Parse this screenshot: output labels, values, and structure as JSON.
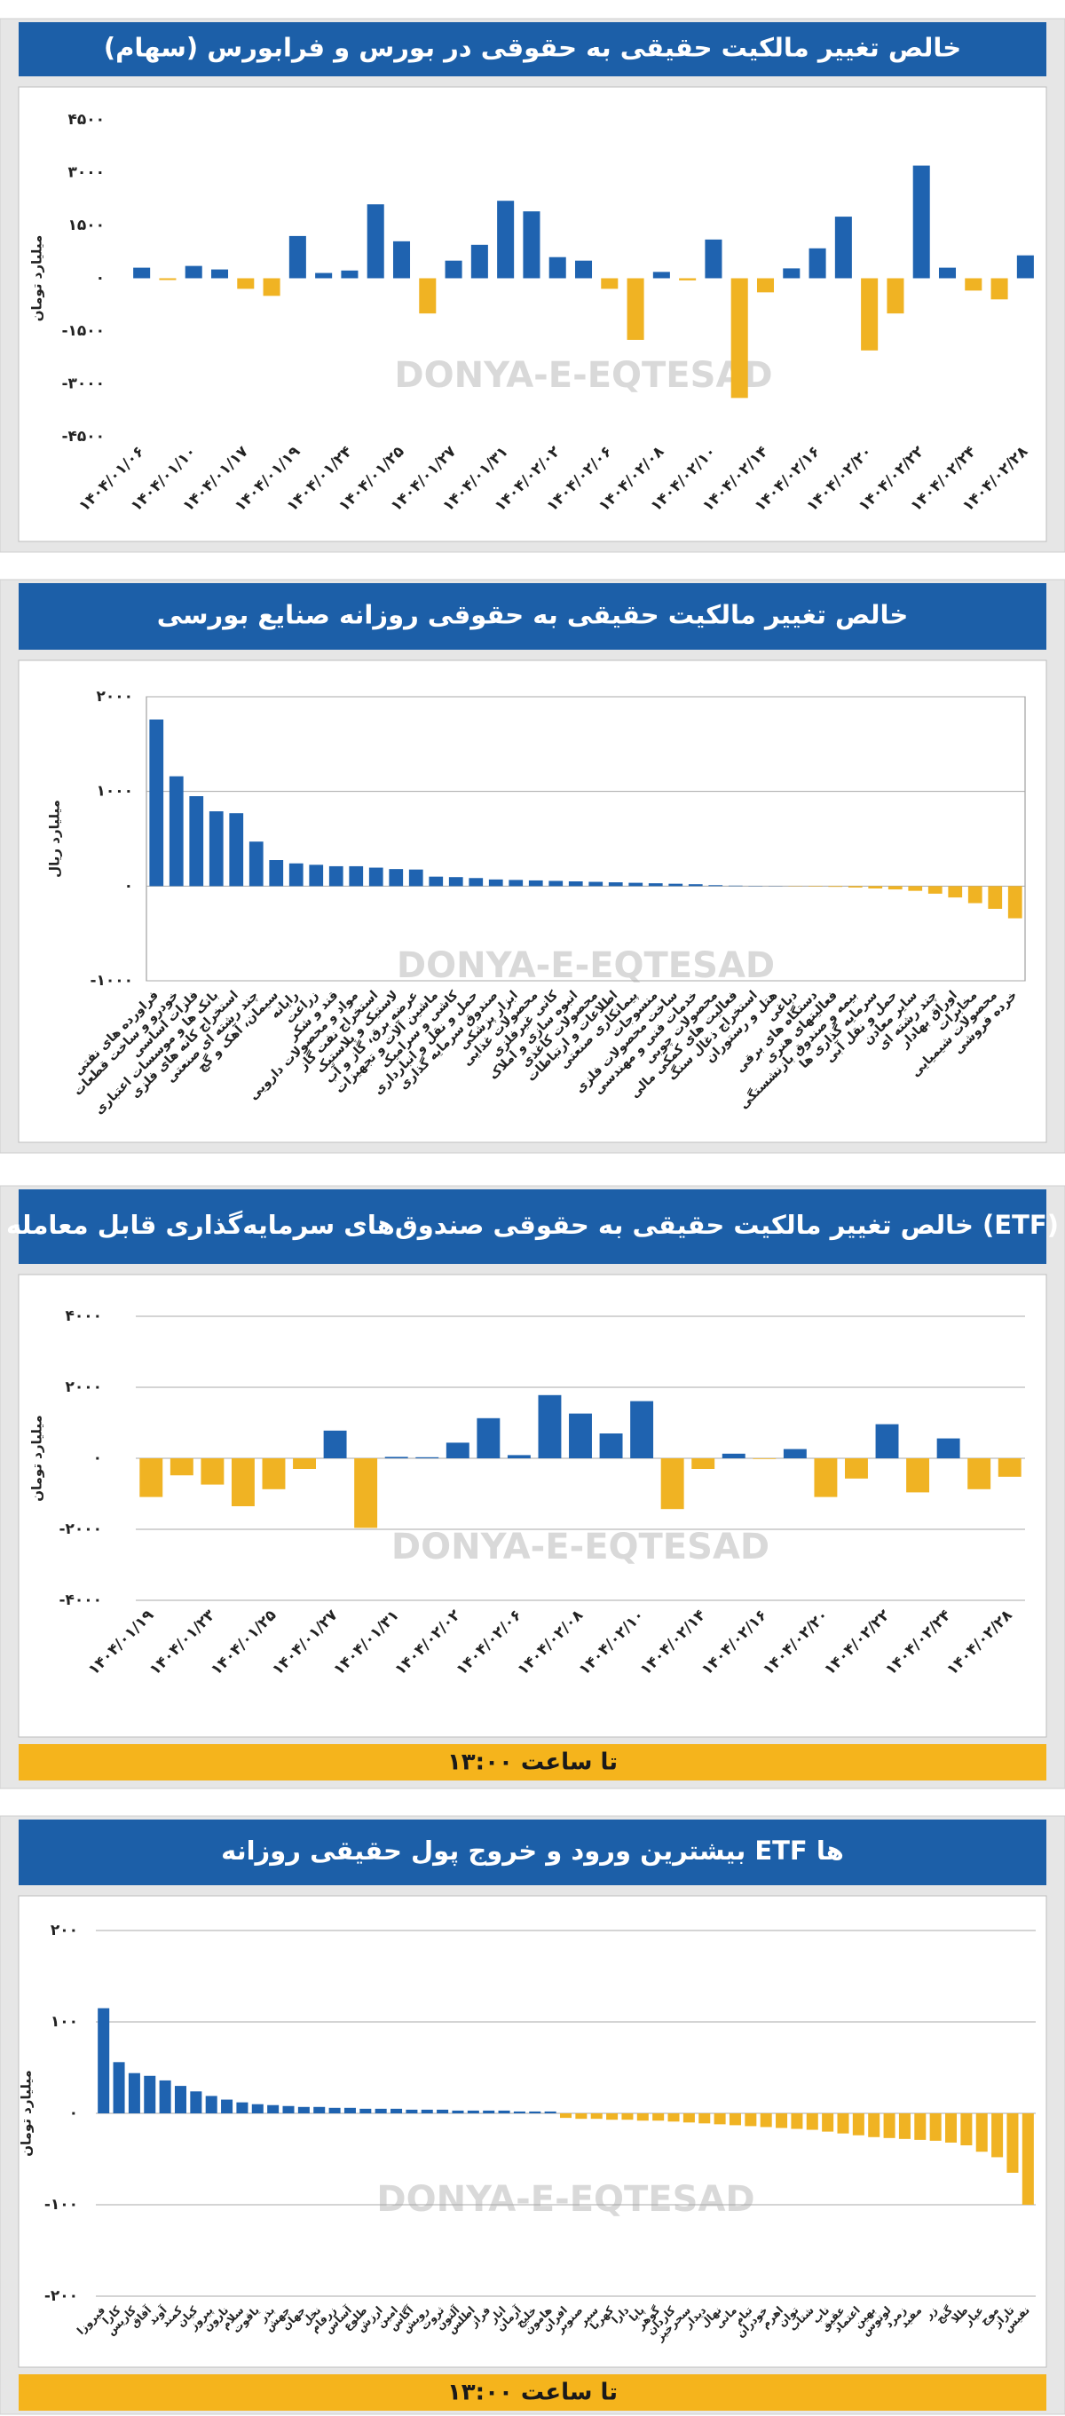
{
  "chart_data": [
    {
      "type": "bar",
      "title": "خالص تغییر مالکیت حقیقی به حقوقی در بورس و فرابورس (سهام)",
      "ylabel": "میلیارد تومان",
      "watermark": "DONYA-E-EQTESAD",
      "color": "#1f63b0",
      "negative_color": "#f0b323",
      "grid": false,
      "ylim": [
        -4500,
        4500
      ],
      "yticks": [
        {
          "value": 4500,
          "label": "۴۵۰۰"
        },
        {
          "value": 3000,
          "label": "۳۰۰۰"
        },
        {
          "value": 1500,
          "label": "۱۵۰۰"
        },
        {
          "value": 0,
          "label": "۰"
        },
        {
          "value": -1500,
          "label": "-۱۵۰۰"
        },
        {
          "value": -3000,
          "label": "-۳۰۰۰"
        },
        {
          "value": -4500,
          "label": "-۴۵۰۰"
        }
      ],
      "categories": [
        "۱۴۰۴/۰۱/۰۶",
        null,
        "۱۴۰۴/۰۱/۱۰",
        null,
        "۱۴۰۴/۰۱/۱۷",
        null,
        "۱۴۰۴/۰۱/۱۹",
        null,
        "۱۴۰۴/۰۱/۲۴",
        null,
        "۱۴۰۴/۰۱/۲۵",
        null,
        "۱۴۰۴/۰۱/۲۷",
        null,
        "۱۴۰۴/۰۱/۳۱",
        null,
        "۱۴۰۴/۰۲/۰۲",
        null,
        "۱۴۰۴/۰۲/۰۶",
        null,
        "۱۴۰۴/۰۲/۰۸",
        null,
        "۱۴۰۴/۰۲/۱۰",
        null,
        "۱۴۰۴/۰۲/۱۴",
        null,
        "۱۴۰۴/۰۲/۱۶",
        null,
        "۱۴۰۴/۰۲/۲۰",
        null,
        "۱۴۰۴/۰۲/۲۲",
        null,
        "۱۴۰۴/۰۲/۲۴",
        null,
        "۱۴۰۴/۰۲/۲۸"
      ],
      "values": [
        300,
        -50,
        350,
        250,
        -300,
        -500,
        1200,
        150,
        220,
        2100,
        1050,
        -1000,
        500,
        950,
        2200,
        1900,
        600,
        500,
        -300,
        -1750,
        180,
        -60,
        1100,
        -3400,
        -400,
        280,
        850,
        1750,
        -2050,
        -1000,
        3200,
        300,
        -350,
        -600,
        650
      ]
    },
    {
      "type": "bar",
      "title": "خالص تغییر مالکیت حقیقی به حقوقی روزانه صنایع بورسی",
      "ylabel": "میلیارد ریال",
      "watermark": "DONYA-E-EQTESAD",
      "color": "#1f63b0",
      "negative_color": "#f0b323",
      "grid": true,
      "ylim": [
        -1000,
        2000
      ],
      "yticks": [
        {
          "value": 2000,
          "label": "۲۰۰۰"
        },
        {
          "value": 1000,
          "label": "۱۰۰۰"
        },
        {
          "value": 0,
          "label": "۰"
        },
        {
          "value": -1000,
          "label": "-۱۰۰۰"
        }
      ],
      "categories": [
        "فراورده های نفتی",
        "خودرو و ساخت قطعات",
        "فلزات اساسی",
        "بانک ها و موسسات اعتباری",
        "استخراج کانه های فلزی",
        "چند رشته ای صنعتی",
        "سیمان، آهک و گچ",
        "رایانه",
        "زراعت",
        "قند و شکر",
        "مواد و محصولات دارویی",
        "استخراج نفت گاز",
        "لاستیک و پلاستیک",
        "عرضه برق، گاز و آب",
        "ماشین آلات و تجهیزات",
        "کاشی و سرامیک",
        "حمل و نقل و انبارداری",
        "صندوق سرمایه گذاری",
        "ابزار پزشکی",
        "محصولات غذایی",
        "کانی غیرفلزی",
        "انبوه سازی و املاک",
        "محصولات کاغذی",
        "اطلاعات و ارتباطات",
        "پیمانکاری صنعتی",
        "منسوجات",
        "ساخت محصولات فلزی",
        "خدمات فنی و مهندسی",
        "محصولات چوبی",
        "فعالیت های کمکی مالی",
        "استخراج ذغال سنگ",
        "هتل و رستوران",
        "دباغی",
        "دستگاه های برقی",
        "فعالیتهای هنری",
        "بیمه و صندوق بازنشستگی",
        "سرمایه گذاری ها",
        "حمل و نقل آبی",
        "سایر معادن",
        "چند رشته ای",
        "اوراق بهادار",
        "مخابرات",
        "محصولات شیمیایی",
        "خرده فروشی"
      ],
      "values": [
        1760,
        1160,
        950,
        790,
        770,
        470,
        275,
        240,
        225,
        210,
        210,
        195,
        180,
        175,
        100,
        95,
        85,
        70,
        65,
        60,
        55,
        50,
        45,
        40,
        35,
        30,
        25,
        20,
        10,
        5,
        3,
        2,
        -3,
        -5,
        -8,
        -15,
        -25,
        -35,
        -50,
        -80,
        -120,
        -180,
        -240,
        -340
      ]
    },
    {
      "type": "bar",
      "title": "خالص تغییر مالکیت حقیقی به حقوقی صندوق‌های سرمایه‌گذاری قابل معامله (ETF)",
      "ylabel": "میلیارد تومان",
      "watermark": "DONYA-E-EQTESAD",
      "footer": "تا ساعت ۱۳:۰۰",
      "color": "#1f63b0",
      "negative_color": "#f0b323",
      "grid": true,
      "ylim": [
        -4000,
        4000
      ],
      "yticks": [
        {
          "value": 4000,
          "label": "۴۰۰۰"
        },
        {
          "value": 2000,
          "label": "۲۰۰۰"
        },
        {
          "value": 0,
          "label": "۰"
        },
        {
          "value": -2000,
          "label": "-۲۰۰۰"
        },
        {
          "value": -4000,
          "label": "-۴۰۰۰"
        }
      ],
      "categories": [
        "۱۴۰۴/۰۱/۱۹",
        null,
        "۱۴۰۴/۰۱/۲۳",
        null,
        "۱۴۰۴/۰۱/۲۵",
        null,
        "۱۴۰۴/۰۱/۲۷",
        null,
        "۱۴۰۴/۰۱/۳۱",
        null,
        "۱۴۰۴/۰۲/۰۲",
        null,
        "۱۴۰۴/۰۲/۰۶",
        null,
        "۱۴۰۴/۰۲/۰۸",
        null,
        "۱۴۰۴/۰۲/۱۰",
        null,
        "۱۴۰۴/۰۲/۱۴",
        null,
        "۱۴۰۴/۰۲/۱۶",
        null,
        "۱۴۰۴/۰۲/۲۰",
        null,
        "۱۴۰۴/۰۲/۲۲",
        null,
        "۱۴۰۴/۰۲/۲۴",
        null,
        "۱۴۰۴/۰۲/۲۸"
      ],
      "values": [
        -1090,
        -480,
        -740,
        -1350,
        -870,
        -300,
        780,
        -1960,
        40,
        30,
        440,
        1130,
        90,
        1780,
        1260,
        700,
        1610,
        -1430,
        -300,
        130,
        -20,
        260,
        -1090,
        -570,
        960,
        -960,
        560,
        -870,
        -520
      ]
    },
    {
      "type": "bar",
      "title": "بیشترین ورود و خروج پول حقیقی روزانه ETF ها",
      "ylabel": "میلیارد تومان",
      "watermark": "DONYA-E-EQTESAD",
      "footer": "تا ساعت ۱۳:۰۰",
      "color": "#1f63b0",
      "negative_color": "#f0b323",
      "grid": true,
      "ylim": [
        -200,
        200
      ],
      "yticks": [
        {
          "value": 200,
          "label": "۲۰۰"
        },
        {
          "value": 100,
          "label": "۱۰۰"
        },
        {
          "value": 0,
          "label": "۰"
        },
        {
          "value": -100,
          "label": "-۱۰۰"
        },
        {
          "value": -200,
          "label": "-۲۰۰"
        }
      ],
      "categories": [
        "فیروزا",
        "کارا",
        "کاریس",
        "آفاق",
        "آوند",
        "کمند",
        "کیان",
        "پیروز",
        "نارون",
        "سلام",
        "یاقوت",
        "بذر",
        "جهش",
        "جهان",
        "نخل",
        "زرفام",
        "آساس",
        "طلوع",
        "ارزش",
        "امین",
        "آگاس",
        "رویش",
        "ثروت",
        "آلتون",
        "اطلس",
        "فراز",
        "انار",
        "آرمان",
        "خلیج",
        "هامون",
        "افران",
        "صنوبر",
        "سپر",
        "کهربا",
        "دارا",
        "پایا",
        "گوهر",
        "کاردان",
        "سحرخیز",
        "دیدار",
        "نهال",
        "مانی",
        "تیام",
        "خودران",
        "اهرم",
        "توان",
        "شتاب",
        "ناب",
        "عقیق",
        "اعتماد",
        "بهین",
        "لوتوس",
        "زمرد",
        "مفید",
        "زر",
        "گنج",
        "طلا",
        "عیار",
        "موج",
        "تاراز",
        "نفیس"
      ],
      "values": [
        115,
        56,
        44,
        41,
        36,
        30,
        24,
        19,
        15,
        12,
        10,
        9,
        8,
        7,
        7,
        6,
        6,
        5,
        5,
        5,
        4,
        4,
        4,
        3,
        3,
        3,
        3,
        2,
        2,
        2,
        -5,
        -6,
        -6,
        -7,
        -7,
        -8,
        -8,
        -9,
        -10,
        -11,
        -12,
        -13,
        -14,
        -15,
        -16,
        -17,
        -18,
        -20,
        -22,
        -24,
        -26,
        -27,
        -28,
        -29,
        -30,
        -32,
        -35,
        -42,
        -48,
        -65,
        -100
      ]
    }
  ]
}
